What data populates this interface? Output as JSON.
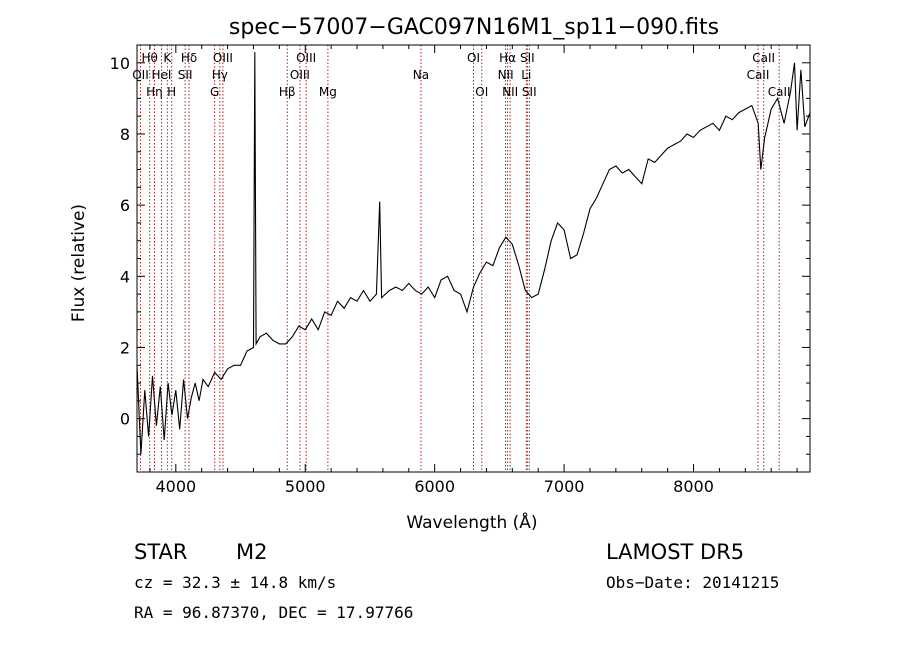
{
  "chart_data": {
    "type": "line",
    "title": "spec−57007−GAC097N16M1_sp11−090.fits",
    "xlabel": "Wavelength (Å)",
    "ylabel": "Flux (relative)",
    "xlim": [
      3700,
      8900
    ],
    "ylim": [
      -1.5,
      10.5
    ],
    "x_ticks": [
      4000,
      5000,
      6000,
      7000,
      8000
    ],
    "y_ticks": [
      0,
      2,
      4,
      6,
      8,
      10
    ],
    "grid": false,
    "line_color": "#000000",
    "marker_color": "#b22222",
    "series": [
      {
        "points": [
          [
            3700,
            1.5
          ],
          [
            3730,
            -1.0
          ],
          [
            3760,
            0.8
          ],
          [
            3790,
            -0.5
          ],
          [
            3820,
            1.2
          ],
          [
            3850,
            -0.2
          ],
          [
            3880,
            0.9
          ],
          [
            3910,
            -0.6
          ],
          [
            3940,
            1.0
          ],
          [
            3970,
            0.1
          ],
          [
            4000,
            0.8
          ],
          [
            4030,
            -0.3
          ],
          [
            4060,
            1.1
          ],
          [
            4090,
            0.0
          ],
          [
            4120,
            0.6
          ],
          [
            4150,
            1.0
          ],
          [
            4180,
            0.5
          ],
          [
            4210,
            1.1
          ],
          [
            4250,
            0.9
          ],
          [
            4300,
            1.3
          ],
          [
            4350,
            1.1
          ],
          [
            4400,
            1.4
          ],
          [
            4450,
            1.5
          ],
          [
            4500,
            1.5
          ],
          [
            4550,
            1.9
          ],
          [
            4600,
            2.0
          ],
          [
            4610,
            10.3
          ],
          [
            4620,
            2.1
          ],
          [
            4650,
            2.3
          ],
          [
            4700,
            2.4
          ],
          [
            4750,
            2.2
          ],
          [
            4800,
            2.1
          ],
          [
            4850,
            2.1
          ],
          [
            4900,
            2.3
          ],
          [
            4950,
            2.6
          ],
          [
            5000,
            2.5
          ],
          [
            5050,
            2.8
          ],
          [
            5100,
            2.5
          ],
          [
            5150,
            3.0
          ],
          [
            5200,
            2.9
          ],
          [
            5250,
            3.3
          ],
          [
            5300,
            3.1
          ],
          [
            5350,
            3.4
          ],
          [
            5400,
            3.3
          ],
          [
            5450,
            3.6
          ],
          [
            5500,
            3.3
          ],
          [
            5550,
            3.5
          ],
          [
            5575,
            6.1
          ],
          [
            5590,
            3.4
          ],
          [
            5650,
            3.6
          ],
          [
            5700,
            3.7
          ],
          [
            5750,
            3.6
          ],
          [
            5800,
            3.8
          ],
          [
            5850,
            3.6
          ],
          [
            5900,
            3.5
          ],
          [
            5950,
            3.7
          ],
          [
            6000,
            3.4
          ],
          [
            6050,
            3.9
          ],
          [
            6100,
            4.0
          ],
          [
            6150,
            3.6
          ],
          [
            6200,
            3.5
          ],
          [
            6250,
            3.0
          ],
          [
            6300,
            3.7
          ],
          [
            6350,
            4.1
          ],
          [
            6400,
            4.4
          ],
          [
            6450,
            4.3
          ],
          [
            6500,
            4.8
          ],
          [
            6550,
            5.1
          ],
          [
            6600,
            4.9
          ],
          [
            6650,
            4.3
          ],
          [
            6700,
            3.6
          ],
          [
            6750,
            3.4
          ],
          [
            6800,
            3.5
          ],
          [
            6850,
            4.2
          ],
          [
            6900,
            5.0
          ],
          [
            6950,
            5.5
          ],
          [
            7000,
            5.3
          ],
          [
            7050,
            4.5
          ],
          [
            7100,
            4.6
          ],
          [
            7150,
            5.2
          ],
          [
            7200,
            5.9
          ],
          [
            7250,
            6.2
          ],
          [
            7300,
            6.6
          ],
          [
            7350,
            7.0
          ],
          [
            7400,
            7.1
          ],
          [
            7450,
            6.9
          ],
          [
            7500,
            7.0
          ],
          [
            7550,
            6.8
          ],
          [
            7600,
            6.6
          ],
          [
            7650,
            7.3
          ],
          [
            7700,
            7.2
          ],
          [
            7750,
            7.4
          ],
          [
            7800,
            7.6
          ],
          [
            7850,
            7.7
          ],
          [
            7900,
            7.8
          ],
          [
            7950,
            8.0
          ],
          [
            8000,
            7.9
          ],
          [
            8050,
            8.1
          ],
          [
            8100,
            8.2
          ],
          [
            8150,
            8.3
          ],
          [
            8200,
            8.1
          ],
          [
            8250,
            8.5
          ],
          [
            8300,
            8.4
          ],
          [
            8350,
            8.6
          ],
          [
            8400,
            8.7
          ],
          [
            8450,
            8.8
          ],
          [
            8500,
            8.3
          ],
          [
            8520,
            7.0
          ],
          [
            8550,
            7.9
          ],
          [
            8600,
            8.7
          ],
          [
            8650,
            9.0
          ],
          [
            8700,
            8.3
          ],
          [
            8750,
            9.2
          ],
          [
            8780,
            10.0
          ],
          [
            8800,
            8.1
          ],
          [
            8830,
            9.8
          ],
          [
            8860,
            8.2
          ],
          [
            8900,
            8.6
          ]
        ]
      }
    ],
    "line_markers": [
      {
        "wavelength": 3727,
        "labels": [
          "OII"
        ],
        "row": 2
      },
      {
        "wavelength": 3798,
        "labels": [
          "Hθ"
        ],
        "row": 1
      },
      {
        "wavelength": 3835,
        "labels": [
          "Hη"
        ],
        "row": 3
      },
      {
        "wavelength": 3889,
        "labels": [
          "HeI"
        ],
        "row": 2
      },
      {
        "wavelength": 3934,
        "labels": [
          "K"
        ],
        "row": 1
      },
      {
        "wavelength": 3968,
        "labels": [
          "H"
        ],
        "row": 3
      },
      {
        "wavelength": 4072,
        "labels": [
          "SII"
        ],
        "row": 2
      },
      {
        "wavelength": 4102,
        "labels": [
          "Hδ"
        ],
        "row": 1
      },
      {
        "wavelength": 4300,
        "labels": [
          "G"
        ],
        "row": 3
      },
      {
        "wavelength": 4340,
        "labels": [
          "Hγ"
        ],
        "row": 2
      },
      {
        "wavelength": 4364,
        "labels": [
          "OIII"
        ],
        "row": 1
      },
      {
        "wavelength": 4861,
        "labels": [
          "Hβ"
        ],
        "row": 3
      },
      {
        "wavelength": 4959,
        "labels": [
          "OIII"
        ],
        "row": 2
      },
      {
        "wavelength": 5007,
        "labels": [
          "OIII"
        ],
        "row": 1
      },
      {
        "wavelength": 5175,
        "labels": [
          "Mg"
        ],
        "row": 3
      },
      {
        "wavelength": 5894,
        "labels": [
          "Na"
        ],
        "row": 2
      },
      {
        "wavelength": 6300,
        "labels": [
          "OI"
        ],
        "row": 1
      },
      {
        "wavelength": 6364,
        "labels": [
          "OI"
        ],
        "row": 3
      },
      {
        "wavelength": 6548,
        "labels": [
          "NII"
        ],
        "row": 2
      },
      {
        "wavelength": 6563,
        "labels": [
          "Hα"
        ],
        "row": 1
      },
      {
        "wavelength": 6583,
        "labels": [
          "NII"
        ],
        "row": 3
      },
      {
        "wavelength": 6708,
        "labels": [
          "Li"
        ],
        "row": 2
      },
      {
        "wavelength": 6716,
        "labels": [
          "SII"
        ],
        "row": 1
      },
      {
        "wavelength": 6731,
        "labels": [
          "SII"
        ],
        "row": 3
      },
      {
        "wavelength": 8498,
        "labels": [
          "CaII"
        ],
        "row": 2
      },
      {
        "wavelength": 8542,
        "labels": [
          "CaII"
        ],
        "row": 1
      },
      {
        "wavelength": 8662,
        "labels": [
          "CaII"
        ],
        "row": 3
      }
    ]
  },
  "info": {
    "class": "STAR",
    "subclass": "M2",
    "survey": "LAMOST DR5",
    "velocity": "cz = 32.3 ± 14.8 km/s",
    "obs_date": "Obs−Date: 20141215",
    "coords": "RA =  96.87370, DEC =  17.97766"
  }
}
